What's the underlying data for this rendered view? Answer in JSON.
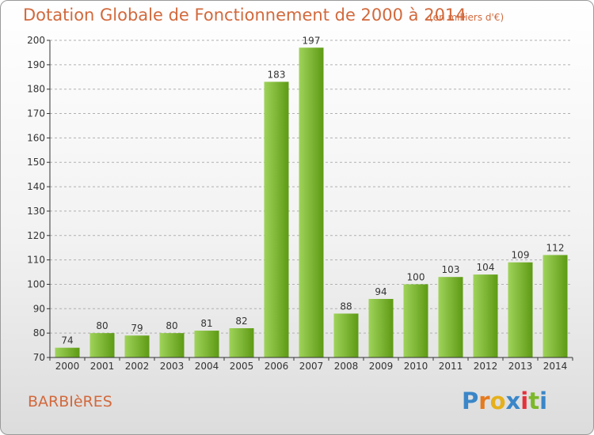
{
  "header": {
    "title": "Dotation Globale de Fonctionnement de 2000 à 2014",
    "unit": "(en milliers d'€)"
  },
  "footer": {
    "commune": "BARBIèRES",
    "brand_letters": [
      "P",
      "r",
      "o",
      "x",
      "i",
      "t",
      "i"
    ],
    "brand_colors": [
      "#3a86c8",
      "#e67a1e",
      "#e5b01c",
      "#3a86c8",
      "#e5303a",
      "#7cb829",
      "#3a86c8"
    ]
  },
  "colors": {
    "bar_light": "#9fd35a",
    "bar_dark": "#5e9a14",
    "axis": "#333333",
    "grid": "#b0b0b0",
    "text": "#333333",
    "accent": "#d2693c"
  },
  "chart_data": {
    "type": "bar",
    "title": "Dotation Globale de Fonctionnement de 2000 à 2014",
    "subtitle": "(en milliers d'€)",
    "xlabel": "",
    "ylabel": "",
    "categories": [
      "2000",
      "2001",
      "2002",
      "2003",
      "2004",
      "2005",
      "2006",
      "2007",
      "2008",
      "2009",
      "2010",
      "2011",
      "2012",
      "2013",
      "2014"
    ],
    "values": [
      74,
      80,
      79,
      80,
      81,
      82,
      183,
      197,
      88,
      94,
      100,
      103,
      104,
      109,
      112
    ],
    "ylim": [
      70,
      200
    ],
    "yticks": [
      70,
      80,
      90,
      100,
      110,
      120,
      130,
      140,
      150,
      160,
      170,
      180,
      190,
      200
    ],
    "grid": true,
    "legend": "none"
  }
}
